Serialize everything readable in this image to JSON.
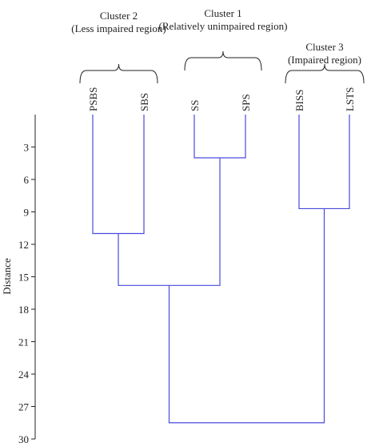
{
  "chart_data": {
    "type": "dendrogram",
    "ylabel": "Distance",
    "ylim": [
      0,
      30
    ],
    "yticks": [
      3,
      6,
      9,
      12,
      15,
      18,
      21,
      24,
      27,
      30
    ],
    "leaves": [
      "PSBS",
      "SBS",
      "SS",
      "SPS",
      "BISS",
      "LSTS"
    ],
    "merges": [
      {
        "left": "SS",
        "right": "SPS",
        "distance": 4.0
      },
      {
        "left": "BISS",
        "right": "LSTS",
        "distance": 8.7
      },
      {
        "left": "PSBS",
        "right": "SBS",
        "distance": 11.0
      },
      {
        "left": "PSBS+SBS",
        "right": "SS+SPS",
        "distance": 15.8
      },
      {
        "left": "PSBS+SBS+SS+SPS",
        "right": "BISS+LSTS",
        "distance": 28.5
      }
    ],
    "clusters": [
      {
        "title": "Cluster 2",
        "subtitle": "(Less impaired region)",
        "leaves": [
          "PSBS",
          "SBS"
        ]
      },
      {
        "title": "Cluster 1",
        "subtitle": "(Relatively unimpaired region)",
        "leaves": [
          "SS",
          "SPS"
        ]
      },
      {
        "title": "Cluster 3",
        "subtitle": "(Impaired region)",
        "leaves": [
          "BISS",
          "LSTS"
        ]
      }
    ],
    "colors": {
      "links": "#4a4adf",
      "axis": "#222222",
      "text": "#222222"
    }
  }
}
